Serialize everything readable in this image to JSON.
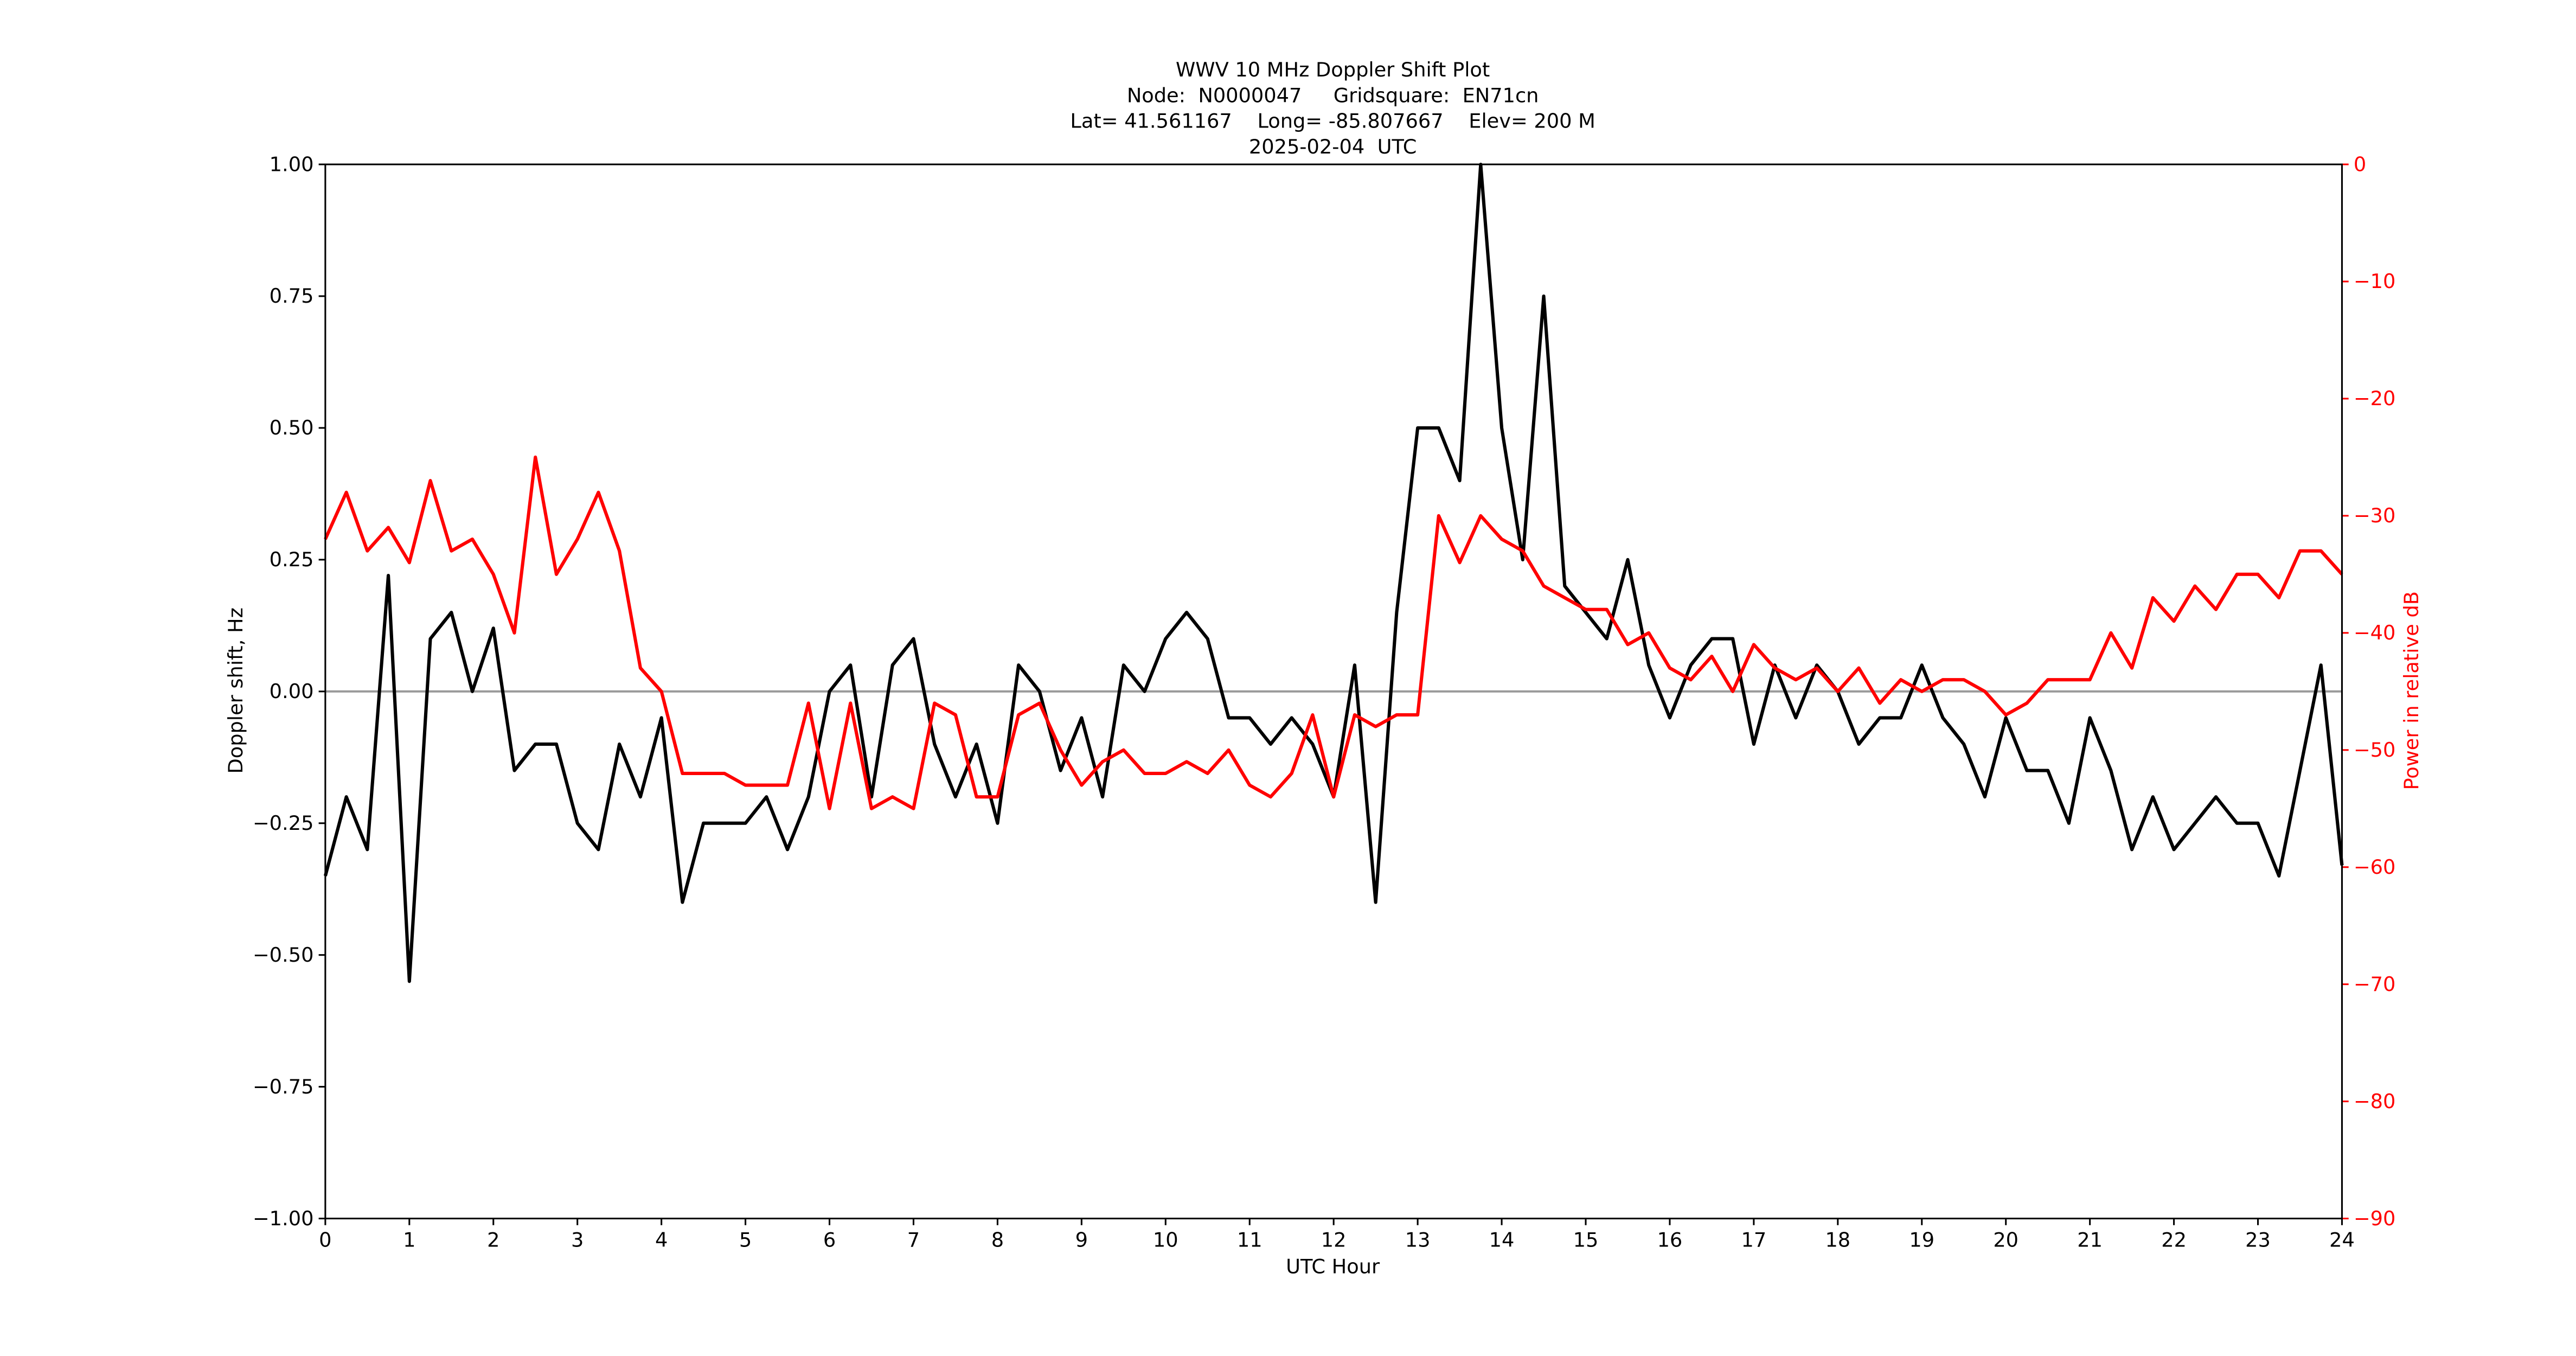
{
  "chart_data": {
    "type": "line",
    "title": "WWV 10 MHz Doppler Shift Plot",
    "subtitle": [
      "Node:  N0000047     Gridsquare:  EN71cn",
      "Lat= 41.561167    Long= -85.807667    Elev= 200 M",
      "2025-02-04  UTC"
    ],
    "x_label": "UTC Hour",
    "y_label": "Doppler shift, Hz",
    "y2_label": "Power in relative dB",
    "x": [
      0,
      0.25,
      0.5,
      0.75,
      1,
      1.25,
      1.5,
      1.75,
      2,
      2.25,
      2.5,
      2.75,
      3,
      3.25,
      3.5,
      3.75,
      4,
      4.25,
      4.5,
      4.75,
      5,
      5.25,
      5.5,
      5.75,
      6,
      6.25,
      6.5,
      6.75,
      7,
      7.25,
      7.5,
      7.75,
      8,
      8.25,
      8.5,
      8.75,
      9,
      9.25,
      9.5,
      9.75,
      10,
      10.25,
      10.5,
      10.75,
      11,
      11.25,
      11.5,
      11.75,
      12,
      12.25,
      12.5,
      12.75,
      13,
      13.25,
      13.5,
      13.75,
      14,
      14.25,
      14.5,
      14.75,
      15,
      15.25,
      15.5,
      15.75,
      16,
      16.25,
      16.5,
      16.75,
      17,
      17.25,
      17.5,
      17.75,
      18,
      18.25,
      18.5,
      18.75,
      19,
      19.25,
      19.5,
      19.75,
      20,
      20.25,
      20.5,
      20.75,
      21,
      21.25,
      21.5,
      21.75,
      22,
      22.25,
      22.5,
      22.75,
      23,
      23.25,
      23.5,
      23.75,
      24
    ],
    "series": [
      {
        "color": "#000000",
        "values": [
          -0.35,
          -0.2,
          -0.3,
          0.22,
          -0.55,
          0.1,
          0.15,
          0.0,
          0.12,
          -0.15,
          -0.1,
          -0.1,
          -0.25,
          -0.3,
          -0.1,
          -0.2,
          -0.05,
          -0.4,
          -0.25,
          -0.25,
          -0.25,
          -0.2,
          -0.3,
          -0.2,
          0.0,
          0.05,
          -0.2,
          0.05,
          0.1,
          -0.1,
          -0.2,
          -0.1,
          -0.25,
          0.05,
          0.0,
          -0.15,
          -0.05,
          -0.2,
          0.05,
          0.0,
          0.1,
          0.15,
          0.1,
          -0.05,
          -0.05,
          -0.1,
          -0.05,
          -0.1,
          -0.2,
          0.05,
          -0.4,
          0.15,
          0.5,
          0.5,
          0.4,
          1.0,
          0.5,
          0.25,
          0.75,
          0.2,
          0.15,
          0.1,
          0.25,
          0.05,
          -0.05,
          0.05,
          0.1,
          0.1,
          -0.1,
          0.05,
          -0.05,
          0.05,
          0.0,
          -0.1,
          -0.05,
          -0.05,
          0.05,
          -0.05,
          -0.1,
          -0.2,
          -0.05,
          -0.15,
          -0.15,
          -0.25,
          -0.05,
          -0.15,
          -0.3,
          -0.2,
          -0.3,
          -0.25,
          -0.2,
          -0.25,
          -0.25,
          -0.35,
          -0.15,
          0.05,
          -0.33
        ]
      },
      {
        "color": "#ff0000",
        "axis": "y2",
        "values": [
          -32,
          -28,
          -33,
          -31,
          -34,
          -27,
          -33,
          -32,
          -35,
          -40,
          -25,
          -35,
          -32,
          -28,
          -33,
          -43,
          -45,
          -52,
          -52,
          -52,
          -53,
          -53,
          -53,
          -46,
          -55,
          -46,
          -55,
          -54,
          -55,
          -46,
          -47,
          -54,
          -54,
          -47,
          -46,
          -50,
          -53,
          -51,
          -50,
          -52,
          -52,
          -51,
          -52,
          -50,
          -53,
          -54,
          -52,
          -47,
          -54,
          -47,
          -48,
          -47,
          -47,
          -30,
          -34,
          -30,
          -32,
          -33,
          -36,
          -37,
          -38,
          -38,
          -41,
          -40,
          -43,
          -44,
          -42,
          -45,
          -41,
          -43,
          -44,
          -43,
          -45,
          -43,
          -46,
          -44,
          -45,
          -44,
          -44,
          -45,
          -47,
          -46,
          -44,
          -44,
          -44,
          -40,
          -43,
          -37,
          -39,
          -36,
          -38,
          -35,
          -35,
          -37,
          -33,
          -33,
          -35
        ]
      }
    ],
    "xlim": [
      0,
      24
    ],
    "xticks": [
      0,
      1,
      2,
      3,
      4,
      5,
      6,
      7,
      8,
      9,
      10,
      11,
      12,
      13,
      14,
      15,
      16,
      17,
      18,
      19,
      20,
      21,
      22,
      23,
      24
    ],
    "ylim": [
      -1,
      1
    ],
    "yticks": [
      {
        "value": -1,
        "label": "−1.00"
      },
      {
        "value": -0.75,
        "label": "−0.75"
      },
      {
        "value": -0.5,
        "label": "−0.50"
      },
      {
        "value": -0.25,
        "label": "−0.25"
      },
      {
        "value": 0,
        "label": "0.00"
      },
      {
        "value": 0.25,
        "label": "0.25"
      },
      {
        "value": 0.5,
        "label": "0.50"
      },
      {
        "value": 0.75,
        "label": "0.75"
      },
      {
        "value": 1,
        "label": "1.00"
      }
    ],
    "y2lim": [
      -90,
      0
    ],
    "y2ticks": [
      {
        "value": -90,
        "label": "−90"
      },
      {
        "value": -80,
        "label": "−80"
      },
      {
        "value": -70,
        "label": "−70"
      },
      {
        "value": -60,
        "label": "−60"
      },
      {
        "value": -50,
        "label": "−50"
      },
      {
        "value": -40,
        "label": "−40"
      },
      {
        "value": -30,
        "label": "−30"
      },
      {
        "value": -20,
        "label": "−20"
      },
      {
        "value": -10,
        "label": "−10"
      },
      0
    ],
    "y2_color": "#ff0000",
    "reference_line": 0,
    "reference_color": "#999999"
  }
}
